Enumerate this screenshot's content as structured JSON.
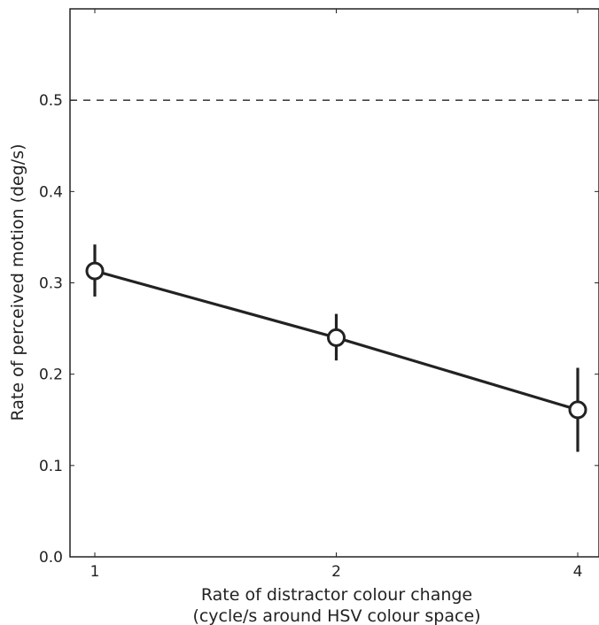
{
  "chart_data": {
    "type": "line",
    "categories": [
      "1",
      "2",
      "4"
    ],
    "x": [
      1,
      2,
      4
    ],
    "series": [
      {
        "values": [
          0.313,
          0.24,
          0.161
        ],
        "error_low": [
          0.285,
          0.215,
          0.115
        ],
        "error_high": [
          0.342,
          0.266,
          0.207
        ],
        "marker": "open-circle",
        "color": "#222222"
      }
    ],
    "reference_line": {
      "y": 0.5,
      "style": "dashed",
      "color": "#222222"
    },
    "xlabel_lines": [
      "Rate of distractor colour change",
      "(cycle/s around HSV colour space)"
    ],
    "ylabel": "Rate of perceived motion (deg/s)",
    "ylim": [
      0.0,
      0.6
    ],
    "yticks": [
      0.0,
      0.1,
      0.2,
      0.3,
      0.4,
      0.5
    ],
    "ytick_labels": [
      "0.0",
      "0.1",
      "0.2",
      "0.3",
      "0.4",
      "0.5"
    ],
    "x_scale": "categorical-log2",
    "grid": false,
    "legend": "none"
  }
}
